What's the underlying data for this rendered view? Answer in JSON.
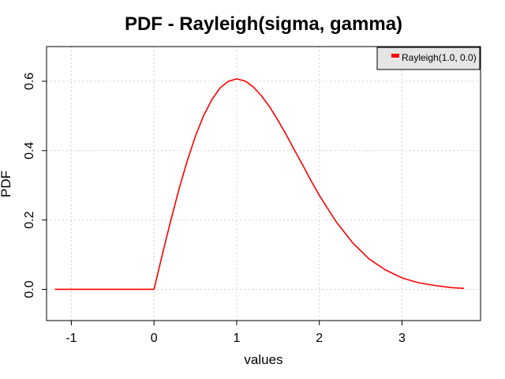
{
  "chart_data": {
    "type": "line",
    "title": "PDF - Rayleigh(sigma, gamma)",
    "xlabel": "values",
    "ylabel": "PDF",
    "xlim": [
      -1.3,
      3.95
    ],
    "ylim": [
      -0.09,
      0.7
    ],
    "xticks": [
      -1,
      0,
      1,
      2,
      3
    ],
    "xtick_labels": [
      "-1",
      "0",
      "1",
      "2",
      "3"
    ],
    "yticks": [
      0.0,
      0.2,
      0.4,
      0.6
    ],
    "ytick_labels": [
      "0.0",
      "0.2",
      "0.4",
      "0.6"
    ],
    "grid": true,
    "legend_position": "top-right",
    "series": [
      {
        "name": "Rayleigh(1.0, 0.0)",
        "color": "#ff0000",
        "x": [
          -1.2,
          -0.9,
          -0.6,
          -0.3,
          0.0,
          0.05,
          0.1,
          0.2,
          0.3,
          0.4,
          0.5,
          0.6,
          0.7,
          0.8,
          0.9,
          1.0,
          1.1,
          1.2,
          1.3,
          1.4,
          1.5,
          1.6,
          1.7,
          1.8,
          1.9,
          2.0,
          2.2,
          2.4,
          2.6,
          2.8,
          3.0,
          3.2,
          3.4,
          3.6,
          3.75
        ],
        "y": [
          0.0,
          0.0,
          0.0,
          0.0,
          0.0,
          0.05,
          0.1,
          0.196,
          0.287,
          0.369,
          0.441,
          0.501,
          0.547,
          0.581,
          0.6,
          0.607,
          0.601,
          0.584,
          0.558,
          0.526,
          0.487,
          0.446,
          0.401,
          0.358,
          0.313,
          0.271,
          0.196,
          0.135,
          0.088,
          0.056,
          0.033,
          0.019,
          0.011,
          0.005,
          0.003
        ]
      }
    ]
  }
}
